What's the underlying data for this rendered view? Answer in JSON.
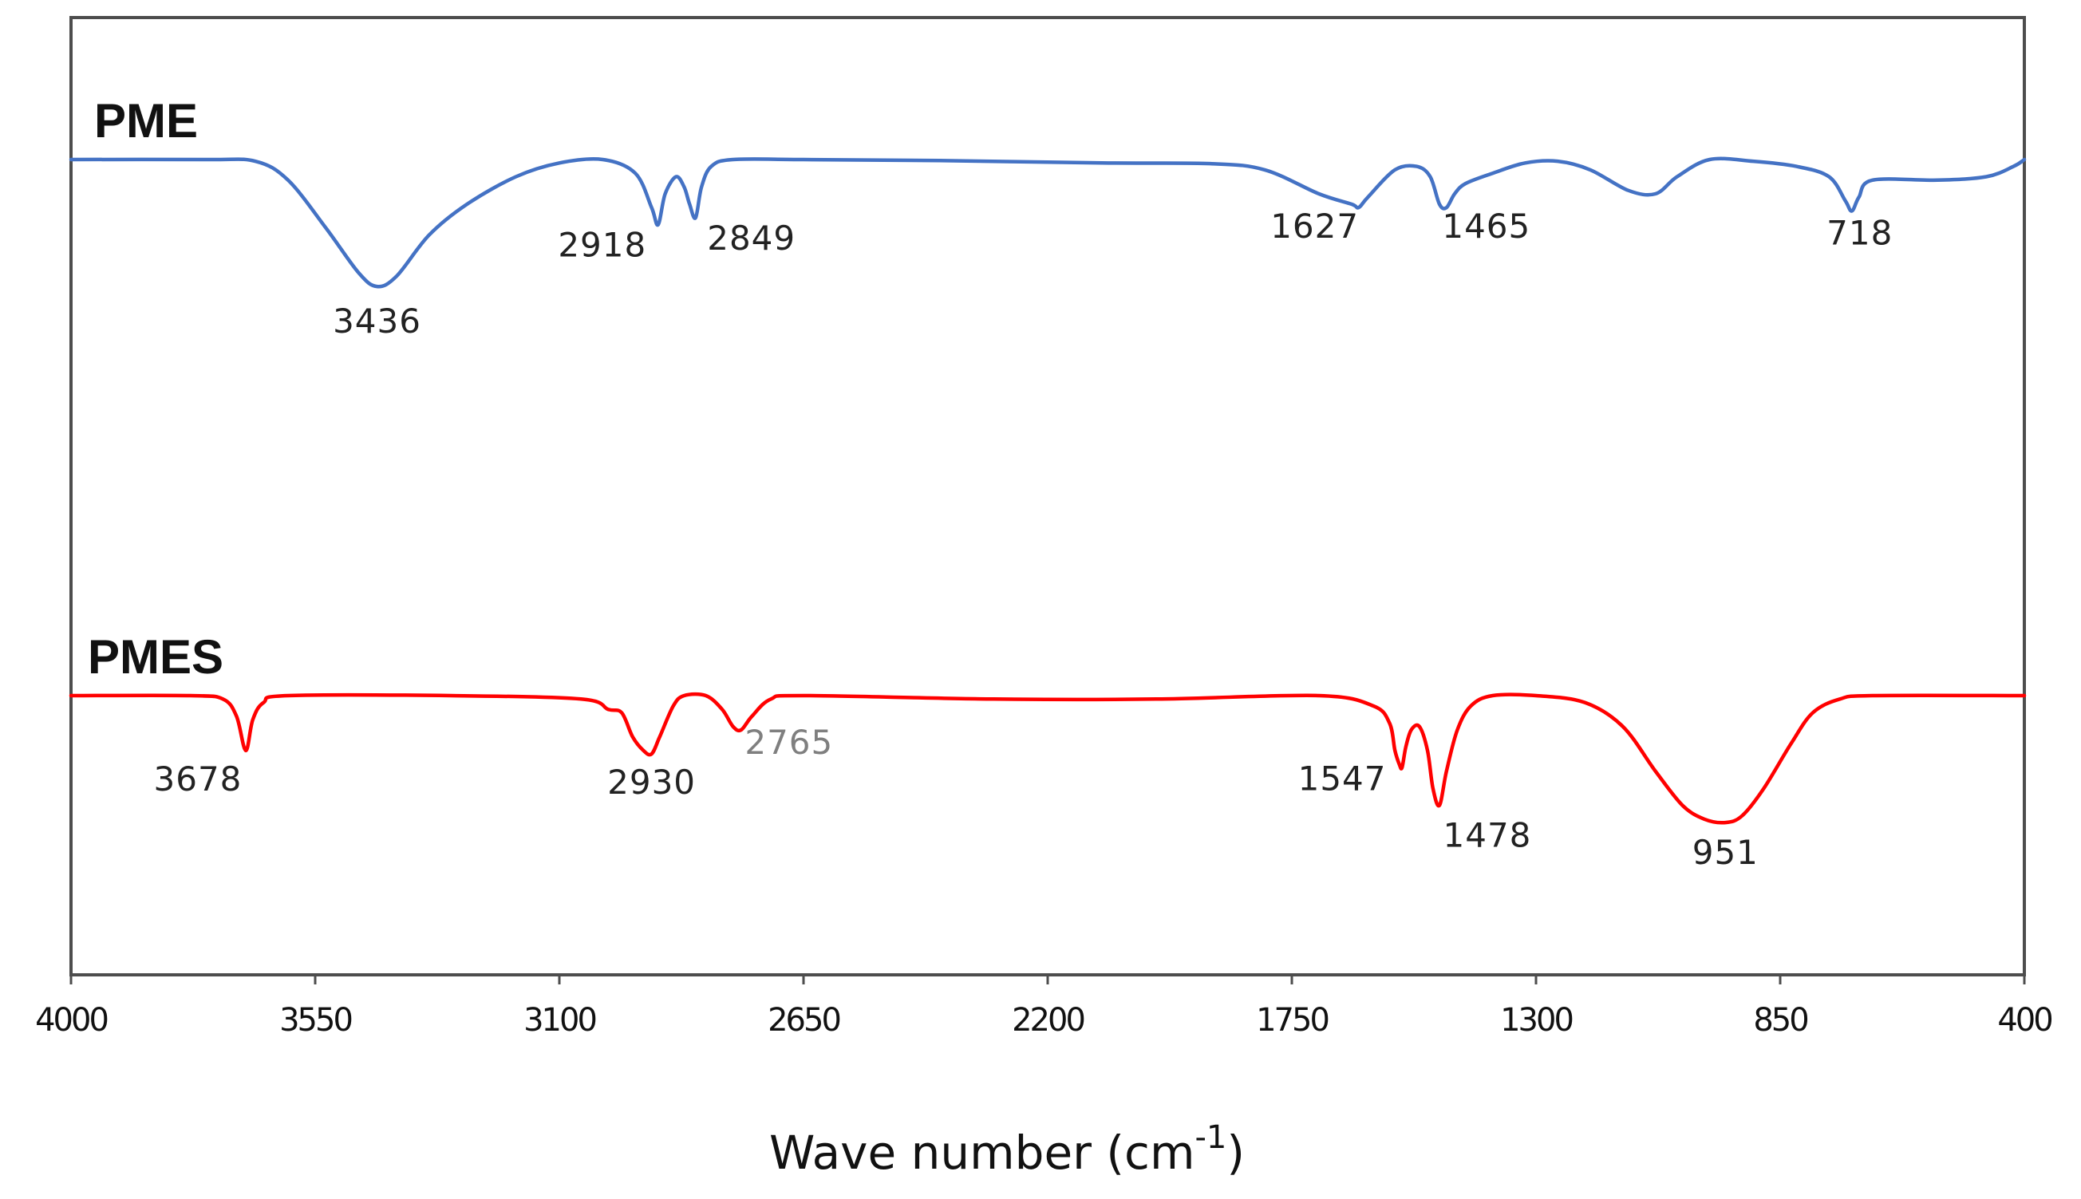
{
  "chart_data": {
    "type": "line",
    "title": "",
    "xlabel": "Wave number (cm",
    "xlabel_sup": "-1",
    "xlabel_close": ")",
    "ylabel": "",
    "xlim": [
      4000,
      400
    ],
    "x_ticks": [
      4000,
      3550,
      3100,
      2650,
      2200,
      1750,
      1300,
      850,
      400
    ],
    "x_tick_labels": [
      "4000",
      "3550",
      "3100",
      "2650",
      "2200",
      "1750",
      "1300",
      "850",
      "400"
    ],
    "grid": false,
    "series": [
      {
        "name": "PME",
        "color": "#4472C4",
        "baseline": 0,
        "points": [
          [
            4000,
            0
          ],
          [
            3750,
            0
          ],
          [
            3660,
            -0.5
          ],
          [
            3600,
            -6
          ],
          [
            3530,
            -20
          ],
          [
            3470,
            -33
          ],
          [
            3436,
            -37
          ],
          [
            3400,
            -34
          ],
          [
            3340,
            -22
          ],
          [
            3270,
            -13
          ],
          [
            3180,
            -5
          ],
          [
            3100,
            -1
          ],
          [
            3020,
            0
          ],
          [
            2960,
            -4
          ],
          [
            2930,
            -14
          ],
          [
            2918,
            -19
          ],
          [
            2905,
            -10
          ],
          [
            2885,
            -5
          ],
          [
            2870,
            -8
          ],
          [
            2860,
            -13
          ],
          [
            2849,
            -17
          ],
          [
            2838,
            -8
          ],
          [
            2820,
            -2
          ],
          [
            2780,
            0
          ],
          [
            2650,
            0
          ],
          [
            2400,
            -0.3
          ],
          [
            2100,
            -1
          ],
          [
            1900,
            -1.2
          ],
          [
            1800,
            -3
          ],
          [
            1700,
            -10
          ],
          [
            1640,
            -13
          ],
          [
            1627,
            -14
          ],
          [
            1610,
            -11
          ],
          [
            1560,
            -3
          ],
          [
            1520,
            -2
          ],
          [
            1495,
            -5
          ],
          [
            1478,
            -13
          ],
          [
            1465,
            -14
          ],
          [
            1450,
            -10
          ],
          [
            1430,
            -7
          ],
          [
            1380,
            -4
          ],
          [
            1320,
            -1
          ],
          [
            1260,
            -0.5
          ],
          [
            1200,
            -3
          ],
          [
            1130,
            -9
          ],
          [
            1080,
            -10
          ],
          [
            1040,
            -5
          ],
          [
            980,
            0
          ],
          [
            900,
            -0.5
          ],
          [
            820,
            -2
          ],
          [
            760,
            -5
          ],
          [
            730,
            -12
          ],
          [
            718,
            -15
          ],
          [
            705,
            -11
          ],
          [
            680,
            -6
          ],
          [
            560,
            -6
          ],
          [
            470,
            -5
          ],
          [
            420,
            -2
          ],
          [
            400,
            0
          ]
        ],
        "peaks": [
          3436,
          2918,
          2849,
          1627,
          1465,
          718
        ],
        "peak_labels": [
          "3436",
          "2918",
          "2849",
          "1627",
          "1465",
          "718"
        ]
      },
      {
        "name": "PMES",
        "color": "#FF0000",
        "baseline": 0,
        "points": [
          [
            4000,
            0
          ],
          [
            3780,
            0
          ],
          [
            3720,
            -1
          ],
          [
            3695,
            -6
          ],
          [
            3678,
            -16
          ],
          [
            3665,
            -7
          ],
          [
            3645,
            -2
          ],
          [
            3600,
            0
          ],
          [
            3300,
            0
          ],
          [
            3060,
            -1
          ],
          [
            3010,
            -4
          ],
          [
            2985,
            -5
          ],
          [
            2965,
            -12
          ],
          [
            2945,
            -16
          ],
          [
            2930,
            -17
          ],
          [
            2915,
            -12
          ],
          [
            2890,
            -3
          ],
          [
            2870,
            0
          ],
          [
            2830,
            0
          ],
          [
            2800,
            -4
          ],
          [
            2780,
            -9
          ],
          [
            2765,
            -10
          ],
          [
            2745,
            -6
          ],
          [
            2710,
            -1
          ],
          [
            2650,
            0
          ],
          [
            2300,
            -1
          ],
          [
            2000,
            -1
          ],
          [
            1700,
            0
          ],
          [
            1600,
            -3
          ],
          [
            1570,
            -8
          ],
          [
            1560,
            -16
          ],
          [
            1552,
            -20
          ],
          [
            1547,
            -21
          ],
          [
            1540,
            -15
          ],
          [
            1530,
            -10
          ],
          [
            1515,
            -9
          ],
          [
            1500,
            -16
          ],
          [
            1490,
            -27
          ],
          [
            1478,
            -32
          ],
          [
            1465,
            -22
          ],
          [
            1445,
            -10
          ],
          [
            1420,
            -3
          ],
          [
            1380,
            0
          ],
          [
            1300,
            0
          ],
          [
            1210,
            -2
          ],
          [
            1140,
            -9
          ],
          [
            1080,
            -22
          ],
          [
            1030,
            -32
          ],
          [
            990,
            -36
          ],
          [
            951,
            -37
          ],
          [
            920,
            -35
          ],
          [
            880,
            -27
          ],
          [
            830,
            -14
          ],
          [
            790,
            -5
          ],
          [
            740,
            -1
          ],
          [
            680,
            0
          ],
          [
            400,
            0
          ]
        ],
        "peaks": [
          3678,
          2930,
          2765,
          1547,
          1478,
          951
        ],
        "peak_labels": [
          "3678",
          "2930",
          "2765",
          "1547",
          "1478",
          "951"
        ]
      }
    ]
  }
}
